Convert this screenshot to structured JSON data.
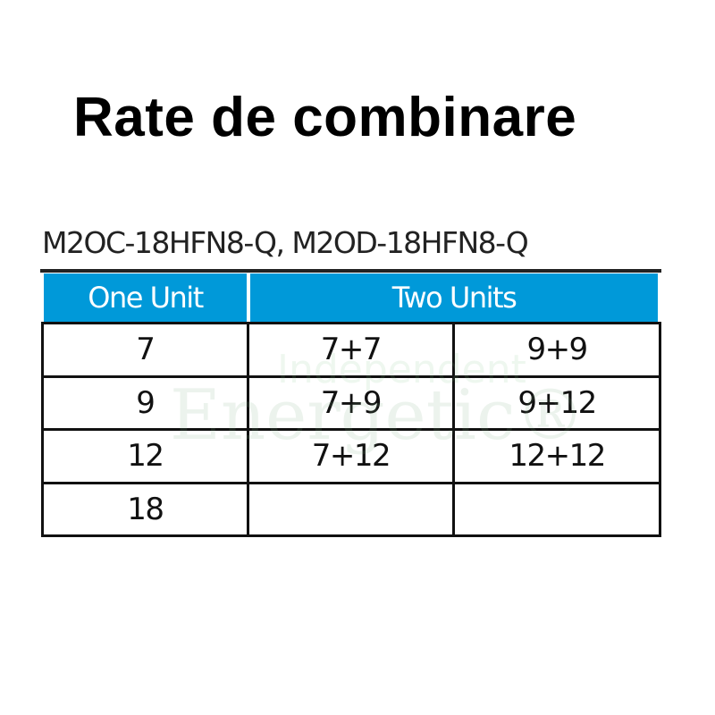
{
  "title": "Rate de combinare",
  "subtitle": "M2OC-18HFN8-Q, M2OD-18HFN8-Q",
  "header": {
    "one_unit": "One Unit",
    "two_units": "Two Units"
  },
  "rows": [
    [
      "7",
      "7+7",
      "9+9"
    ],
    [
      "9",
      "7+9",
      "9+12"
    ],
    [
      "12",
      "7+12",
      "12+12"
    ],
    [
      "18",
      "",
      ""
    ]
  ],
  "watermark": {
    "line1": "Independent",
    "line2": "Energetic®"
  },
  "colors": {
    "header_bg": "#0099d9"
  }
}
